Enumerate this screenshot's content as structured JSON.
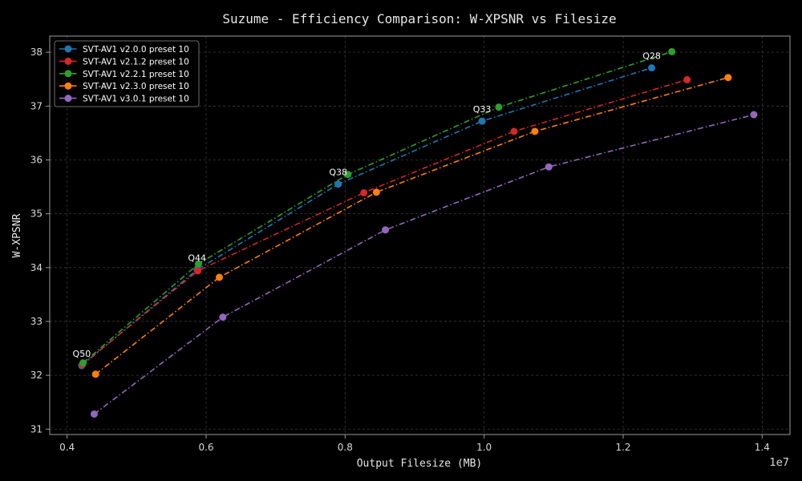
{
  "chart_data": {
    "type": "line",
    "title": "Suzume - Efficiency Comparison: W-XPSNR vs Filesize",
    "xlabel": "Output Filesize (MB)",
    "ylabel": "W-XPSNR",
    "x_offset_label": "1e7",
    "xlim": [
      3.75,
      14.4
    ],
    "ylim": [
      30.9,
      38.3
    ],
    "xticks": [
      4,
      6,
      8,
      10,
      12,
      14
    ],
    "xtick_labels": [
      "0.4",
      "0.6",
      "0.8",
      "1.0",
      "1.2",
      "1.4"
    ],
    "yticks": [
      31,
      32,
      33,
      34,
      35,
      36,
      37,
      38
    ],
    "ytick_labels": [
      "31",
      "32",
      "33",
      "34",
      "35",
      "36",
      "37",
      "38"
    ],
    "grid": true,
    "legend_position": "top-left",
    "line_style": "dash-dot",
    "series": [
      {
        "name": "SVT-AV1 v2.0.0 preset 10",
        "color": "#1f77b4",
        "x": [
          4.21,
          5.87,
          7.9,
          9.97,
          12.41
        ],
        "y": [
          32.18,
          33.96,
          35.55,
          36.72,
          37.71
        ]
      },
      {
        "name": "SVT-AV1 v2.1.2 preset 10",
        "color": "#d62728",
        "x": [
          4.22,
          5.88,
          8.27,
          10.43,
          12.92
        ],
        "y": [
          32.2,
          33.94,
          35.39,
          36.53,
          37.49
        ]
      },
      {
        "name": "SVT-AV1 v2.2.1 preset 10",
        "color": "#2ca02c",
        "x": [
          4.23,
          5.89,
          8.04,
          10.21,
          12.7
        ],
        "y": [
          32.23,
          34.07,
          35.73,
          36.98,
          38.01
        ]
      },
      {
        "name": "SVT-AV1 v2.3.0 preset 10",
        "color": "#ff7f0e",
        "x": [
          4.41,
          6.19,
          8.45,
          10.73,
          13.51
        ],
        "y": [
          32.02,
          33.82,
          35.4,
          36.53,
          37.53
        ]
      },
      {
        "name": "SVT-AV1 v3.0.1 preset 10",
        "color": "#9467bd",
        "x": [
          4.39,
          6.24,
          8.58,
          10.93,
          13.88
        ],
        "y": [
          31.28,
          33.08,
          34.7,
          35.87,
          36.84
        ]
      }
    ],
    "annotations": [
      {
        "text": "Q50",
        "x": 4.21,
        "y": 32.18
      },
      {
        "text": "Q44",
        "x": 5.87,
        "y": 33.96
      },
      {
        "text": "Q38",
        "x": 7.9,
        "y": 35.55
      },
      {
        "text": "Q33",
        "x": 9.97,
        "y": 36.72
      },
      {
        "text": "Q28",
        "x": 12.41,
        "y": 37.71
      }
    ],
    "colors": {
      "background": "#000000",
      "axes": "#9a9a9a",
      "grid": "#3a3a3a",
      "text": "#e6e6e6"
    }
  }
}
